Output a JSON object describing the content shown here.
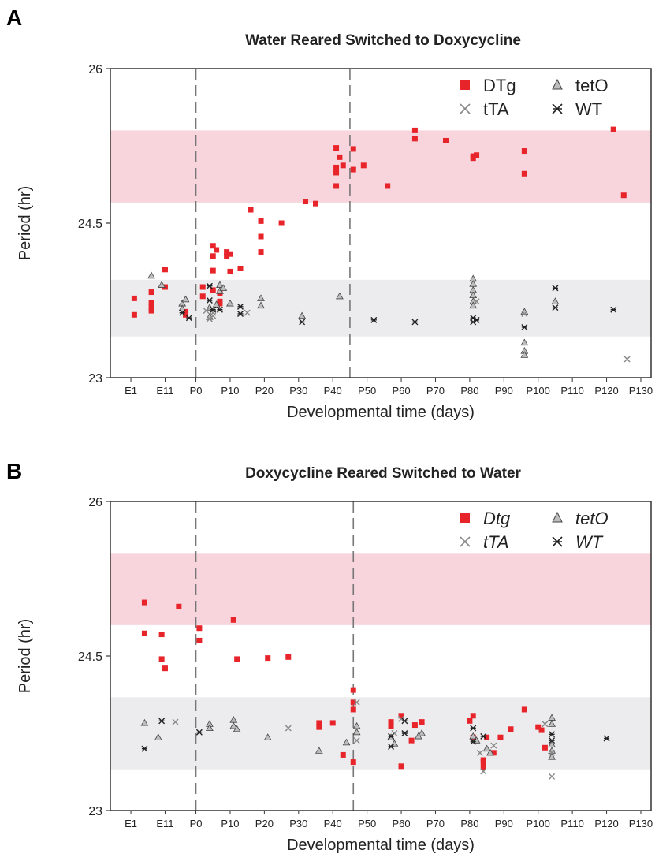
{
  "chart_data": [
    {
      "panel": "A",
      "type": "scatter",
      "title": "Water Reared Switched to Doxycycline",
      "xlabel": "Developmental time (days)",
      "ylabel": "Period (hr)",
      "ylim": [
        23,
        26
      ],
      "yticks": [
        "23",
        "24.5",
        "26"
      ],
      "xlim": [
        -25,
        133
      ],
      "xtick_labels": [
        "E1",
        "E11",
        "P0",
        "P10",
        "P20",
        "P30",
        "P40",
        "P50",
        "P60",
        "P70",
        "P80",
        "P90",
        "P100",
        "P110",
        "P120",
        "P130"
      ],
      "xtick_values": [
        -19,
        -9,
        0,
        10,
        20,
        30,
        40,
        50,
        60,
        70,
        80,
        90,
        100,
        110,
        120,
        130
      ],
      "vlines": [
        0,
        45
      ],
      "bands": [
        {
          "name": "pink",
          "color": "#f8d4dc",
          "range": [
            24.7,
            25.4
          ]
        },
        {
          "name": "gray",
          "color": "#ececee",
          "range": [
            23.4,
            23.95
          ]
        }
      ],
      "legend_italic": false,
      "legend": [
        "DTg",
        "tetO",
        "tTA",
        "WT"
      ],
      "series": [
        {
          "name": "DTg",
          "marker": "square",
          "color": "#e8242b",
          "points": [
            [
              -18,
              23.77
            ],
            [
              -18,
              23.61
            ],
            [
              -13,
              23.68
            ],
            [
              -13,
              23.73
            ],
            [
              -13,
              23.65
            ],
            [
              -13,
              23.83
            ],
            [
              -9,
              23.88
            ],
            [
              -9,
              24.05
            ],
            [
              -3,
              23.61
            ],
            [
              -3,
              23.64
            ],
            [
              2,
              23.79
            ],
            [
              2,
              23.88
            ],
            [
              5,
              24.28
            ],
            [
              5,
              24.18
            ],
            [
              5,
              24.04
            ],
            [
              5,
              23.85
            ],
            [
              6,
              24.24
            ],
            [
              7,
              23.82
            ],
            [
              7,
              23.74
            ],
            [
              7,
              23.72
            ],
            [
              9,
              24.22
            ],
            [
              9,
              24.18
            ],
            [
              10,
              24.2
            ],
            [
              10,
              24.03
            ],
            [
              13,
              24.06
            ],
            [
              16,
              24.63
            ],
            [
              19,
              24.52
            ],
            [
              19,
              24.37
            ],
            [
              19,
              24.22
            ],
            [
              25,
              24.5
            ],
            [
              32,
              24.71
            ],
            [
              35,
              24.69
            ],
            [
              41,
              25.23
            ],
            [
              41,
              25.04
            ],
            [
              41,
              24.99
            ],
            [
              41,
              24.86
            ],
            [
              42,
              25.14
            ],
            [
              43,
              25.06
            ],
            [
              46,
              25.22
            ],
            [
              46,
              25.02
            ],
            [
              49,
              25.06
            ],
            [
              56,
              24.86
            ],
            [
              64,
              25.4
            ],
            [
              64,
              25.32
            ],
            [
              73,
              25.3
            ],
            [
              81,
              25.15
            ],
            [
              81,
              25.13
            ],
            [
              82,
              25.16
            ],
            [
              96,
              25.2
            ],
            [
              96,
              24.98
            ],
            [
              122,
              25.41
            ],
            [
              125,
              24.77
            ]
          ]
        },
        {
          "name": "tetO",
          "marker": "triangle",
          "color": "#888888",
          "points": [
            [
              -13,
              23.99
            ],
            [
              -10,
              23.9
            ],
            [
              -4,
              23.72
            ],
            [
              -4,
              23.67
            ],
            [
              -3,
              23.76
            ],
            [
              4,
              23.68
            ],
            [
              4,
              23.59
            ],
            [
              6,
              23.71
            ],
            [
              7,
              23.9
            ],
            [
              7,
              23.84
            ],
            [
              8,
              23.87
            ],
            [
              10,
              23.72
            ],
            [
              19,
              23.77
            ],
            [
              19,
              23.7
            ],
            [
              31,
              23.6
            ],
            [
              42,
              23.79
            ],
            [
              81,
              23.96
            ],
            [
              81,
              23.91
            ],
            [
              81,
              23.85
            ],
            [
              81,
              23.8
            ],
            [
              81,
              23.74
            ],
            [
              81,
              23.7
            ],
            [
              96,
              23.64
            ],
            [
              96,
              23.34
            ],
            [
              96,
              23.26
            ],
            [
              96,
              23.22
            ],
            [
              105,
              23.74
            ]
          ]
        },
        {
          "name": "tTA",
          "marker": "x",
          "color": "#888888",
          "points": [
            [
              3,
              23.65
            ],
            [
              4,
              23.57
            ],
            [
              5,
              23.63
            ],
            [
              5,
              23.6
            ],
            [
              15,
              23.63
            ],
            [
              82,
              23.74
            ],
            [
              96,
              23.62
            ],
            [
              126,
              23.18
            ]
          ]
        },
        {
          "name": "WT",
          "marker": "asterisk",
          "color": "#222222",
          "points": [
            [
              -4,
              23.63
            ],
            [
              -2,
              23.58
            ],
            [
              4,
              23.89
            ],
            [
              4,
              23.75
            ],
            [
              5,
              23.66
            ],
            [
              7,
              23.66
            ],
            [
              13,
              23.69
            ],
            [
              13,
              23.62
            ],
            [
              31,
              23.54
            ],
            [
              52,
              23.56
            ],
            [
              64,
              23.54
            ],
            [
              81,
              23.58
            ],
            [
              81,
              23.54
            ],
            [
              82,
              23.56
            ],
            [
              96,
              23.49
            ],
            [
              105,
              23.87
            ],
            [
              105,
              23.68
            ],
            [
              122,
              23.66
            ]
          ]
        }
      ]
    },
    {
      "panel": "B",
      "type": "scatter",
      "title": "Doxycycline Reared Switched to Water",
      "xlabel": "Developmental time (days)",
      "ylabel": "Period (hr)",
      "ylim": [
        23,
        26
      ],
      "yticks": [
        "23",
        "24.5",
        "26"
      ],
      "xlim": [
        -25,
        133
      ],
      "xtick_labels": [
        "E1",
        "E11",
        "P0",
        "P10",
        "P20",
        "P30",
        "P40",
        "P50",
        "P60",
        "P70",
        "P80",
        "P90",
        "P100",
        "P110",
        "P120",
        "P130"
      ],
      "xtick_values": [
        -19,
        -9,
        0,
        10,
        20,
        30,
        40,
        50,
        60,
        70,
        80,
        90,
        100,
        110,
        120,
        130
      ],
      "vlines": [
        0,
        46
      ],
      "bands": [
        {
          "name": "pink",
          "color": "#f8d4dc",
          "range": [
            24.8,
            25.5
          ]
        },
        {
          "name": "gray",
          "color": "#ececee",
          "range": [
            23.4,
            24.1
          ]
        }
      ],
      "legend_italic": true,
      "legend": [
        "Dtg",
        "tetO",
        "tTA",
        "WT"
      ],
      "series": [
        {
          "name": "Dtg",
          "marker": "square",
          "color": "#e8242b",
          "points": [
            [
              -15,
              25.02
            ],
            [
              -15,
              24.72
            ],
            [
              -10,
              24.71
            ],
            [
              -10,
              24.47
            ],
            [
              -9,
              24.38
            ],
            [
              -5,
              24.98
            ],
            [
              1,
              24.77
            ],
            [
              1,
              24.65
            ],
            [
              11,
              24.85
            ],
            [
              12,
              24.47
            ],
            [
              21,
              24.48
            ],
            [
              27,
              24.49
            ],
            [
              36,
              23.85
            ],
            [
              36,
              23.81
            ],
            [
              40,
              23.85
            ],
            [
              43,
              23.54
            ],
            [
              46,
              24.17
            ],
            [
              46,
              24.05
            ],
            [
              46,
              23.98
            ],
            [
              46,
              23.47
            ],
            [
              57,
              23.82
            ],
            [
              57,
              23.86
            ],
            [
              60,
              23.92
            ],
            [
              60,
              23.43
            ],
            [
              63,
              23.68
            ],
            [
              64,
              23.83
            ],
            [
              66,
              23.86
            ],
            [
              80,
              23.87
            ],
            [
              81,
              23.71
            ],
            [
              81,
              23.92
            ],
            [
              84,
              23.49
            ],
            [
              84,
              23.47
            ],
            [
              84,
              23.42
            ],
            [
              85,
              23.71
            ],
            [
              87,
              23.56
            ],
            [
              89,
              23.71
            ],
            [
              92,
              23.79
            ],
            [
              96,
              23.98
            ],
            [
              100,
              23.81
            ],
            [
              101,
              23.78
            ],
            [
              102,
              23.61
            ]
          ]
        },
        {
          "name": "tetO",
          "marker": "triangle",
          "color": "#888888",
          "points": [
            [
              -15,
              23.85
            ],
            [
              -11,
              23.71
            ],
            [
              4,
              23.84
            ],
            [
              4,
              23.8
            ],
            [
              11,
              23.88
            ],
            [
              11,
              23.82
            ],
            [
              12,
              23.79
            ],
            [
              21,
              23.71
            ],
            [
              36,
              23.58
            ],
            [
              44,
              23.66
            ],
            [
              47,
              23.82
            ],
            [
              47,
              23.76
            ],
            [
              57,
              23.71
            ],
            [
              58,
              23.65
            ],
            [
              65,
              23.72
            ],
            [
              66,
              23.75
            ],
            [
              81,
              23.72
            ],
            [
              82,
              23.68
            ],
            [
              85,
              23.6
            ],
            [
              86,
              23.56
            ],
            [
              104,
              23.9
            ],
            [
              104,
              23.84
            ],
            [
              104,
              23.64
            ],
            [
              104,
              23.58
            ],
            [
              104,
              23.52
            ]
          ]
        },
        {
          "name": "tTA",
          "marker": "x",
          "color": "#888888",
          "points": [
            [
              -6,
              23.86
            ],
            [
              27,
              23.8
            ],
            [
              47,
              24.05
            ],
            [
              47,
              23.68
            ],
            [
              58,
              23.75
            ],
            [
              60,
              23.89
            ],
            [
              83,
              23.56
            ],
            [
              84,
              23.38
            ],
            [
              87,
              23.63
            ],
            [
              102,
              23.84
            ],
            [
              104,
              23.33
            ],
            [
              104,
              23.56
            ]
          ]
        },
        {
          "name": "WT",
          "marker": "asterisk",
          "color": "#222222",
          "points": [
            [
              -15,
              23.6
            ],
            [
              -10,
              23.87
            ],
            [
              1,
              23.76
            ],
            [
              57,
              23.72
            ],
            [
              57,
              23.62
            ],
            [
              61,
              23.87
            ],
            [
              61,
              23.75
            ],
            [
              81,
              23.8
            ],
            [
              81,
              23.67
            ],
            [
              84,
              23.72
            ],
            [
              104,
              23.74
            ],
            [
              104,
              23.68
            ],
            [
              120,
              23.7
            ]
          ]
        }
      ]
    }
  ],
  "panels": [
    {
      "letter": "A"
    },
    {
      "letter": "B"
    }
  ]
}
